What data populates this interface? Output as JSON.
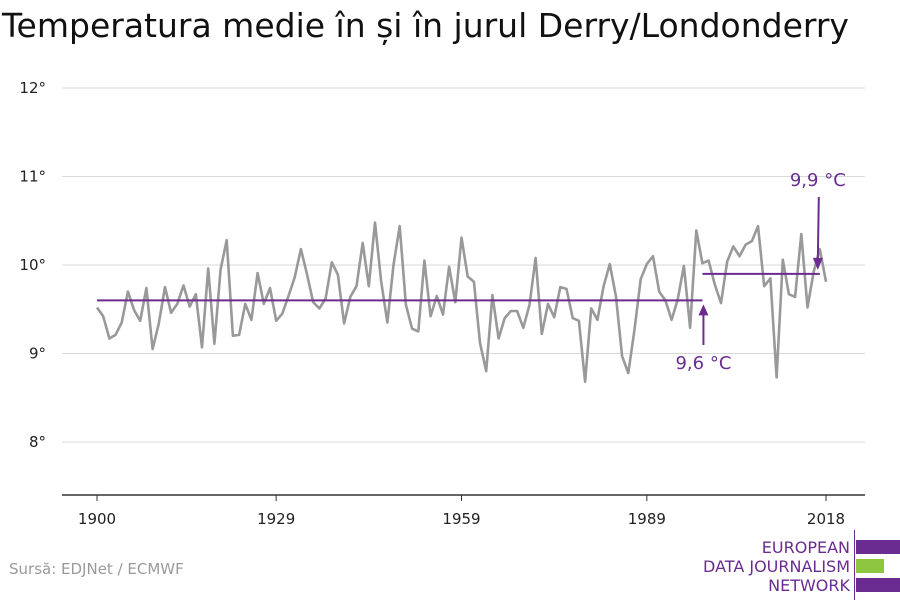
{
  "title": "Temperatura medie în și în jurul Derry/Londonderry",
  "source": "Sursă: EDJNet / ECMWF",
  "logo": {
    "lines": [
      "EUROPEAN",
      "DATA JOURNALISM",
      "NETWORK"
    ],
    "purple": "#6a2c91",
    "green": "#8dc63f"
  },
  "colors": {
    "series": "#999999",
    "reference": "#6a2c91",
    "grid": "#d9d9d9",
    "axis": "#333333"
  },
  "chart_data": {
    "type": "line",
    "title": "Temperatura medie în și în jurul Derry/Londonderry",
    "xlabel": "",
    "ylabel": "",
    "xlim": [
      1900,
      2018
    ],
    "ylim": [
      7.4,
      12.2
    ],
    "xticks": [
      1900,
      1929,
      1959,
      1989,
      2018
    ],
    "yticks": [
      {
        "value": 8,
        "label": "8°"
      },
      {
        "value": 9,
        "label": "9°"
      },
      {
        "value": 10,
        "label": "10°"
      },
      {
        "value": 11,
        "label": "11°"
      },
      {
        "value": 12,
        "label": "12°"
      }
    ],
    "grid": true,
    "series": [
      {
        "x": [
          1900,
          1901,
          1902,
          1903,
          1904,
          1905,
          1906,
          1907,
          1908,
          1909,
          1910,
          1911,
          1912,
          1913,
          1914,
          1915,
          1916,
          1917,
          1918,
          1919,
          1920,
          1921,
          1922,
          1923,
          1924,
          1925,
          1926,
          1927,
          1928,
          1929,
          1930,
          1931,
          1932,
          1933,
          1934,
          1935,
          1936,
          1937,
          1938,
          1939,
          1940,
          1941,
          1942,
          1943,
          1944,
          1945,
          1946,
          1947,
          1948,
          1949,
          1950,
          1951,
          1952,
          1953,
          1954,
          1955,
          1956,
          1957,
          1958,
          1959,
          1960,
          1961,
          1962,
          1963,
          1964,
          1965,
          1966,
          1967,
          1968,
          1969,
          1970,
          1971,
          1972,
          1973,
          1974,
          1975,
          1976,
          1977,
          1978,
          1979,
          1980,
          1981,
          1982,
          1983,
          1984,
          1985,
          1986,
          1987,
          1988,
          1989,
          1990,
          1991,
          1992,
          1993,
          1994,
          1995,
          1996,
          1997,
          1998,
          1999,
          2000,
          2001,
          2002,
          2003,
          2004,
          2005,
          2006,
          2007,
          2008,
          2009,
          2010,
          2011,
          2012,
          2013,
          2014,
          2015,
          2016,
          2017,
          2018
        ],
        "values": [
          9.52,
          9.42,
          9.17,
          9.21,
          9.35,
          9.7,
          9.49,
          9.37,
          9.74,
          9.05,
          9.34,
          9.75,
          9.46,
          9.56,
          9.77,
          9.53,
          9.67,
          9.07,
          9.96,
          9.11,
          9.95,
          10.28,
          9.2,
          9.21,
          9.56,
          9.38,
          9.91,
          9.56,
          9.74,
          9.37,
          9.45,
          9.65,
          9.86,
          10.18,
          9.89,
          9.58,
          9.51,
          9.62,
          10.03,
          9.89,
          9.34,
          9.64,
          9.76,
          10.25,
          9.76,
          10.48,
          9.81,
          9.35,
          10.0,
          10.44,
          9.55,
          9.28,
          9.25,
          10.05,
          9.42,
          9.65,
          9.44,
          9.98,
          9.58,
          10.31,
          9.87,
          9.81,
          9.12,
          8.8,
          9.66,
          9.17,
          9.4,
          9.48,
          9.48,
          9.29,
          9.55,
          10.08,
          9.22,
          9.56,
          9.41,
          9.75,
          9.73,
          9.4,
          9.37,
          8.68,
          9.51,
          9.38,
          9.76,
          10.01,
          9.65,
          8.97,
          8.78,
          9.27,
          9.84,
          10.01,
          10.1,
          9.7,
          9.6,
          9.38,
          9.61,
          9.99,
          9.29,
          10.39,
          10.02,
          10.05,
          9.78,
          9.57,
          10.04,
          10.21,
          10.1,
          10.23,
          10.27,
          10.44,
          9.76,
          9.85,
          8.73,
          10.06,
          9.67,
          9.64,
          10.35,
          9.52,
          9.92,
          10.18,
          9.81
        ]
      }
    ],
    "reference_lines": [
      {
        "label": "9,6 °C",
        "value": 9.6,
        "from": 1900,
        "to": 1998,
        "arrow_x": 1998
      },
      {
        "label": "9,9 °C",
        "value": 9.9,
        "from": 1998,
        "to": 2017,
        "arrow_x": 2017
      }
    ]
  }
}
